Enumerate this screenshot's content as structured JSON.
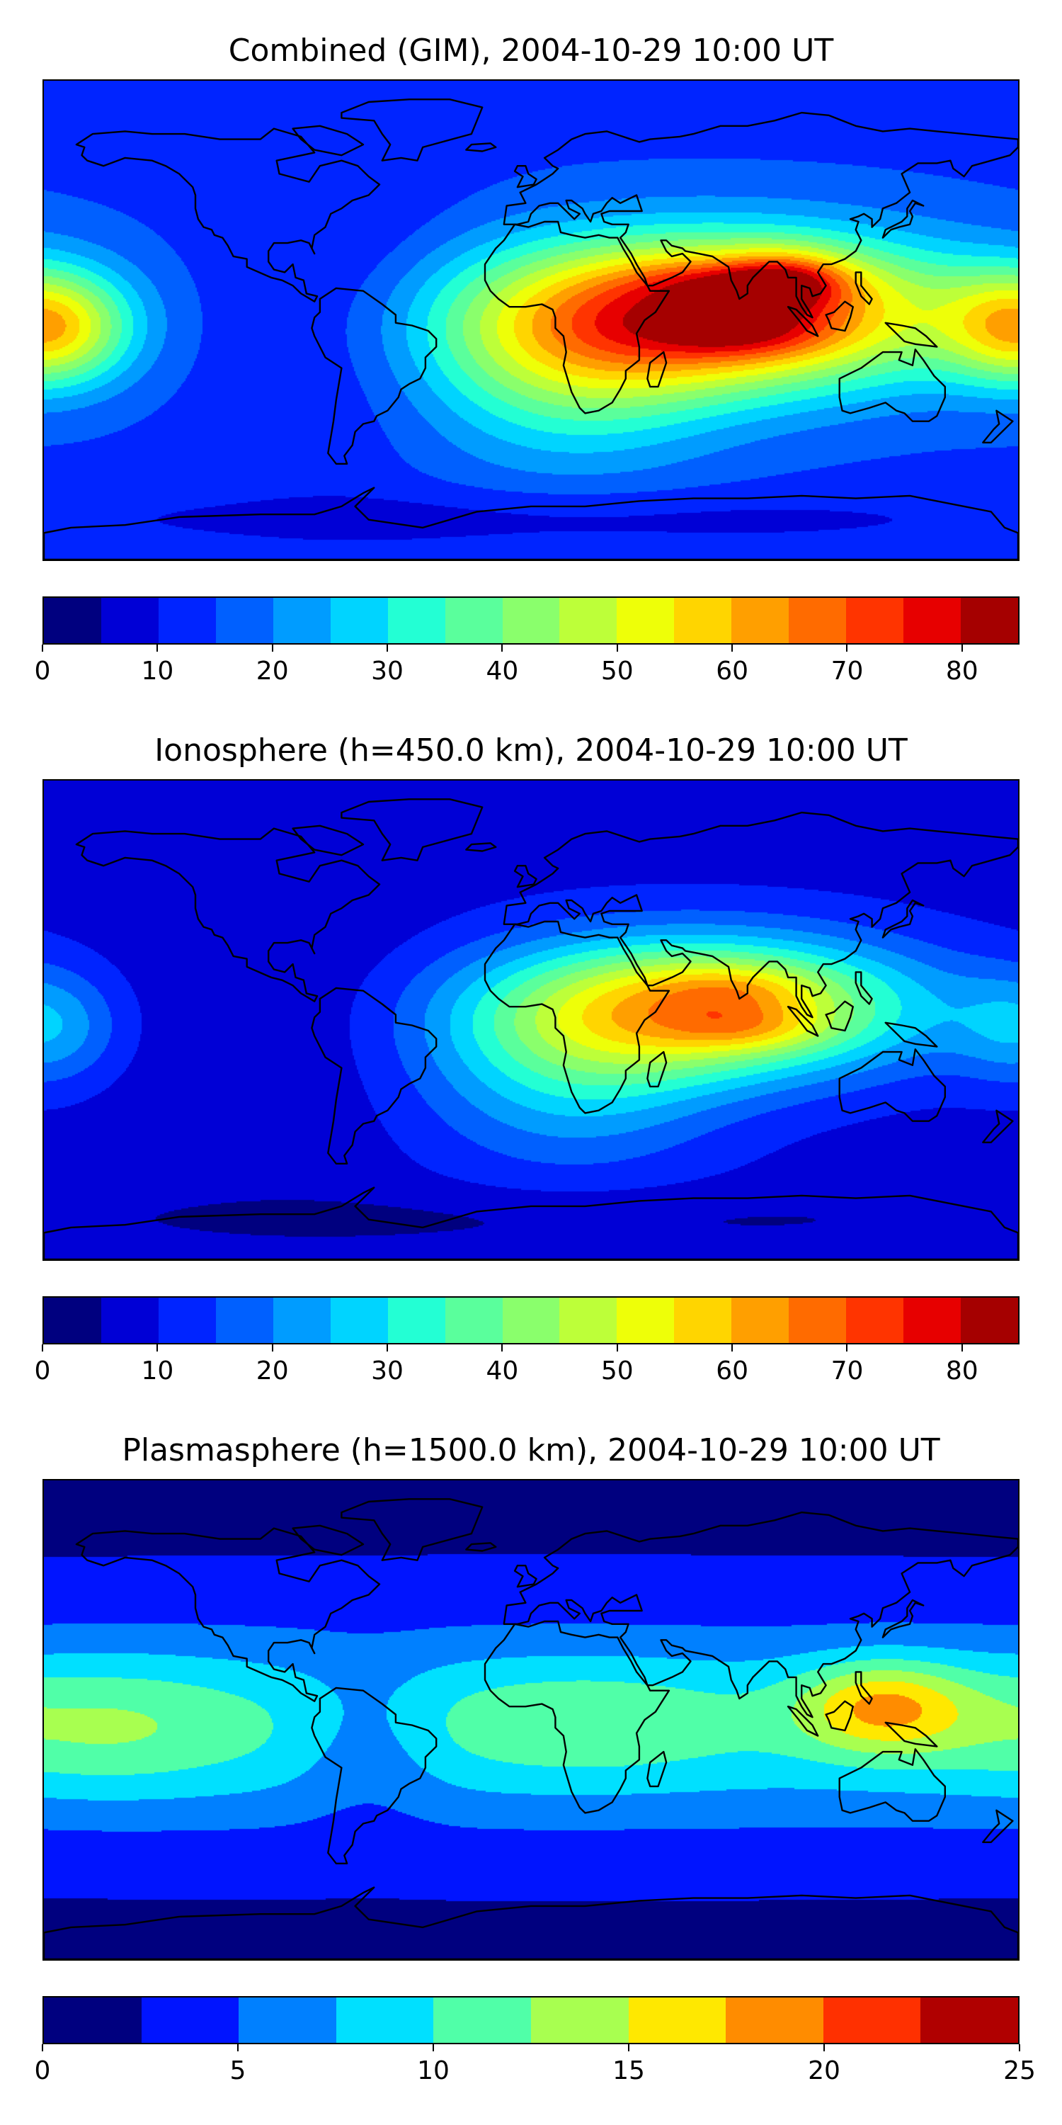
{
  "panels": [
    {
      "title": "Combined (GIM), 2004-10-29 10:00 UT",
      "colorbar": {
        "min": 0,
        "max": 85,
        "step": 5,
        "ticks": [
          "0",
          "10",
          "20",
          "30",
          "40",
          "50",
          "60",
          "70",
          "80"
        ],
        "tick_values": [
          0,
          10,
          20,
          30,
          40,
          50,
          60,
          70,
          80
        ],
        "colors": [
          "#00007f",
          "#0000d6",
          "#0024ff",
          "#0060ff",
          "#009cff",
          "#00d4ff",
          "#23ffd4",
          "#5aff9c",
          "#8aff6c",
          "#bdff39",
          "#eeff08",
          "#ffd500",
          "#ff9f00",
          "#ff6b00",
          "#ff3400",
          "#e70000",
          "#a50000"
        ]
      },
      "field": {
        "background": 14,
        "blobs": [
          {
            "lon": 70,
            "lat": 3,
            "a": 62,
            "sx": 62,
            "sy": 20
          },
          {
            "lon": 78,
            "lat": 14,
            "a": 14,
            "sx": 25,
            "sy": 6
          },
          {
            "lon": 80,
            "lat": -5,
            "a": 12,
            "sx": 22,
            "sy": 7
          },
          {
            "lon": 95,
            "lat": 15,
            "a": 18,
            "sx": 15,
            "sy": 8
          },
          {
            "lon": 15,
            "lat": -20,
            "a": 20,
            "sx": 40,
            "sy": 25
          },
          {
            "lon": -175,
            "lat": -3,
            "a": 20,
            "sx": 20,
            "sy": 15
          },
          {
            "lon": 180,
            "lat": -3,
            "a": 18,
            "sx": 20,
            "sy": 15
          },
          {
            "lon": -70,
            "lat": 10,
            "a": -6,
            "sx": 30,
            "sy": 45
          },
          {
            "lon": 0,
            "lat": -75,
            "a": -6,
            "sx": 150,
            "sy": 8
          }
        ]
      }
    },
    {
      "title": "Ionosphere  (h=450.0 km), 2004-10-29 10:00 UT",
      "colorbar": {
        "min": 0,
        "max": 85,
        "step": 5,
        "ticks": [
          "0",
          "10",
          "20",
          "30",
          "40",
          "50",
          "60",
          "70",
          "80"
        ],
        "tick_values": [
          0,
          10,
          20,
          30,
          40,
          50,
          60,
          70,
          80
        ],
        "colors": [
          "#00007f",
          "#0000d6",
          "#0024ff",
          "#0060ff",
          "#009cff",
          "#00d4ff",
          "#23ffd4",
          "#5aff9c",
          "#8aff6c",
          "#bdff39",
          "#eeff08",
          "#ffd500",
          "#ff9f00",
          "#ff6b00",
          "#ff3400",
          "#e70000",
          "#a50000"
        ]
      },
      "field": {
        "background": 8,
        "blobs": [
          {
            "lon": 65,
            "lat": 5,
            "a": 50,
            "sx": 55,
            "sy": 18
          },
          {
            "lon": 75,
            "lat": 12,
            "a": 8,
            "sx": 20,
            "sy": 6
          },
          {
            "lon": 80,
            "lat": -3,
            "a": 10,
            "sx": 20,
            "sy": 6
          },
          {
            "lon": 15,
            "lat": -20,
            "a": 18,
            "sx": 40,
            "sy": 25
          },
          {
            "lon": -178,
            "lat": -3,
            "a": 14,
            "sx": 18,
            "sy": 15
          },
          {
            "lon": -95,
            "lat": 10,
            "a": -3,
            "sx": 40,
            "sy": 50
          },
          {
            "lon": 0,
            "lat": -75,
            "a": -4,
            "sx": 150,
            "sy": 8
          }
        ]
      }
    },
    {
      "title": "Plasmasphere (h=1500.0 km), 2004-10-29 10:00 UT",
      "colorbar": {
        "min": 0,
        "max": 25,
        "step": 2.5,
        "ticks": [
          "0",
          "5",
          "10",
          "15",
          "20",
          "25"
        ],
        "tick_values": [
          0,
          5,
          10,
          15,
          20,
          25
        ],
        "colors": [
          "#00007f",
          "#0014ff",
          "#0080ff",
          "#00e0ff",
          "#50ffa8",
          "#a8ff50",
          "#ffe800",
          "#ff8c00",
          "#ff3000",
          "#b00000"
        ]
      },
      "field": {
        "background": 2,
        "blobs": [
          {
            "lon": 0,
            "lat": -3,
            "a": 7.5,
            "sx": 400,
            "sy": 28
          },
          {
            "lon": 130,
            "lat": 5,
            "a": 9,
            "sx": 22,
            "sy": 12
          },
          {
            "lon": -160,
            "lat": -2,
            "a": 4,
            "sx": 40,
            "sy": 18
          },
          {
            "lon": 20,
            "lat": 0,
            "a": 3,
            "sx": 40,
            "sy": 15
          },
          {
            "lon": -60,
            "lat": -8,
            "a": -3,
            "sx": 18,
            "sy": 20
          }
        ]
      }
    }
  ]
}
